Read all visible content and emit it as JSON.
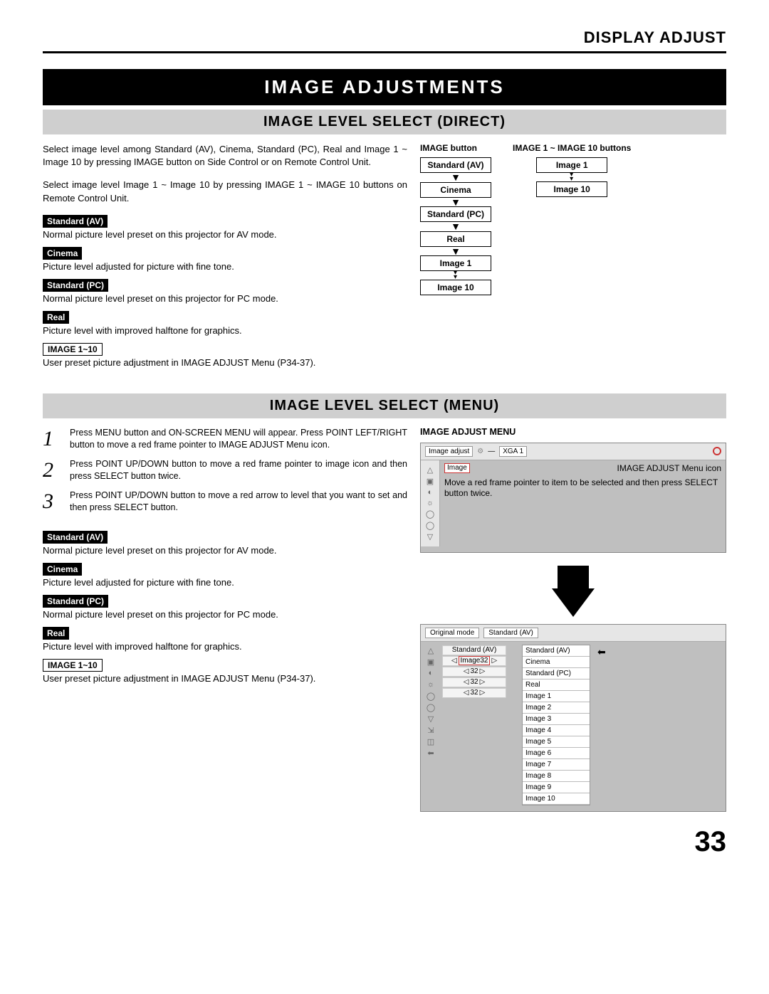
{
  "header": {
    "title": "DISPLAY ADJUST"
  },
  "banner": "IMAGE ADJUSTMENTS",
  "section1": {
    "title": "IMAGE LEVEL SELECT (DIRECT)",
    "intro1": "Select image level among Standard (AV), Cinema, Standard (PC), Real and Image 1 ~ Image 10 by pressing IMAGE button on Side Control or on Remote Control Unit.",
    "intro2": "Select image level Image 1 ~ Image 10 by pressing IMAGE 1 ~ IMAGE 10 buttons on Remote Control Unit.",
    "items": [
      {
        "label": "Standard (AV)",
        "desc": "Normal picture level preset on this projector for AV mode.",
        "style": "pill"
      },
      {
        "label": "Cinema",
        "desc": "Picture level adjusted for picture with fine tone.",
        "style": "pill"
      },
      {
        "label": "Standard (PC)",
        "desc": "Normal picture level preset on this projector for PC mode.",
        "style": "pill"
      },
      {
        "label": "Real",
        "desc": "Picture level with improved halftone for graphics.",
        "style": "pill"
      },
      {
        "label": "IMAGE 1~10",
        "desc": "User preset picture adjustment in IMAGE ADJUST Menu (P34-37).",
        "style": "outline"
      }
    ],
    "flowA": {
      "title": "IMAGE button",
      "boxes": [
        "Standard (AV)",
        "Cinema",
        "Standard (PC)",
        "Real",
        "Image 1",
        "Image 10"
      ]
    },
    "flowB": {
      "title": "IMAGE 1 ~ IMAGE 10 buttons",
      "boxes": [
        "Image 1",
        "Image 10"
      ]
    }
  },
  "section2": {
    "title": "IMAGE LEVEL SELECT (MENU)",
    "steps": [
      "Press MENU button and ON-SCREEN MENU will appear.  Press POINT LEFT/RIGHT button to move a red frame pointer to IMAGE ADJUST Menu icon.",
      "Press POINT UP/DOWN button to move a red frame pointer to image icon and then press SELECT button twice.",
      "Press POINT UP/DOWN button to move a red arrow to level that you want to set and then press SELECT button."
    ],
    "items": [
      {
        "label": "Standard (AV)",
        "desc": "Normal picture level preset on this projector for AV mode.",
        "style": "pill"
      },
      {
        "label": "Cinema",
        "desc": "Picture level adjusted for picture with fine tone.",
        "style": "pill"
      },
      {
        "label": "Standard (PC)",
        "desc": "Normal picture level preset on this projector for PC mode.",
        "style": "pill"
      },
      {
        "label": "Real",
        "desc": "Picture level with improved halftone for graphics.",
        "style": "pill"
      },
      {
        "label": "IMAGE 1~10",
        "desc": "User preset picture adjustment in IMAGE ADJUST Menu (P34-37).",
        "style": "outline"
      }
    ],
    "menu": {
      "title": "IMAGE ADJUST MENU",
      "bar_tab": "Image adjust",
      "bar_mode": "XGA 1",
      "callout1": "IMAGE ADJUST Menu icon",
      "callout2": "Move a red frame pointer to item to be selected and then press SELECT button twice.",
      "image_label": "Image",
      "tab2a": "Original mode",
      "tab2b": "Standard (AV)",
      "left_labels": [
        "Standard (AV)",
        "Image32",
        "32",
        "32",
        "32"
      ],
      "options": [
        "Standard (AV)",
        "Cinema",
        "Standard (PC)",
        "Real",
        "Image 1",
        "Image 2",
        "Image 3",
        "Image 4",
        "Image 5",
        "Image 6",
        "Image 7",
        "Image 8",
        "Image 9",
        "Image 10"
      ]
    }
  },
  "page": "33"
}
